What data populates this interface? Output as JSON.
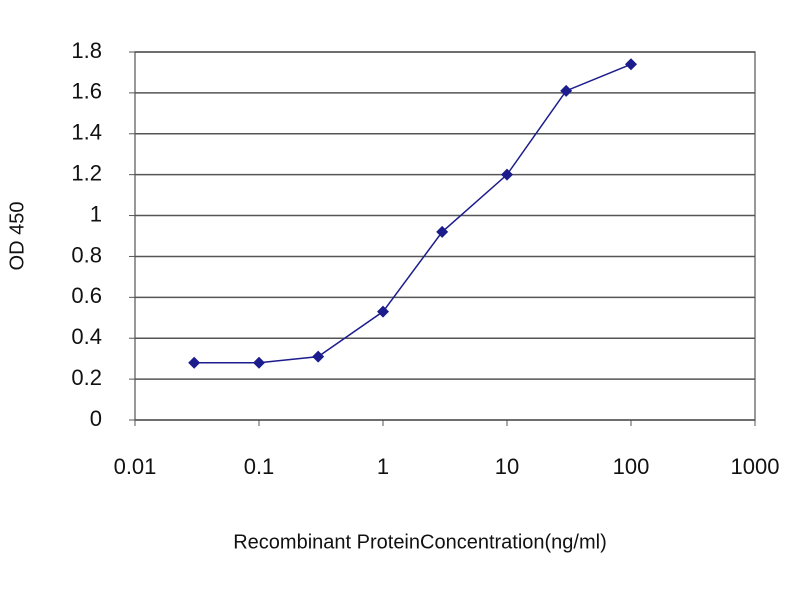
{
  "chart_data": {
    "type": "line",
    "xlabel": "Recombinant ProteinConcentration(ng/ml)",
    "ylabel": "OD 450",
    "x": [
      0.03,
      0.1,
      0.3,
      1,
      3,
      10,
      30,
      100
    ],
    "values": [
      0.28,
      0.28,
      0.31,
      0.53,
      0.92,
      1.2,
      1.61,
      1.74
    ],
    "color": "#1c1c8c",
    "marker": "diamond",
    "xlim": [
      0.01,
      1000
    ],
    "xticks": [
      0.01,
      0.1,
      1,
      10,
      100,
      1000
    ],
    "log_x": true,
    "ylim": [
      0,
      1.8
    ],
    "yticks": [
      0,
      0.2,
      0.4,
      0.6,
      0.8,
      1,
      1.2,
      1.4,
      1.6,
      1.8
    ],
    "grid": true
  }
}
